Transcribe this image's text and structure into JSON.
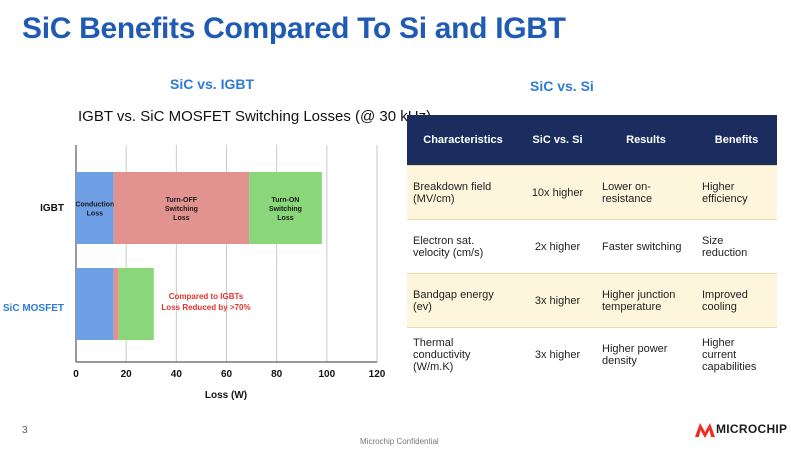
{
  "slide": {
    "title": "SiC Benefits Compared To Si and IGBT",
    "page_number": "3",
    "footer": "Microchip Confidential",
    "logo_text": "MICROCHIP",
    "brand_color": "#ee2e24"
  },
  "left": {
    "subtitle": "SiC vs. IGBT"
  },
  "right": {
    "subtitle": "SiC vs. Si"
  },
  "chart_data": {
    "type": "bar",
    "orientation": "horizontal",
    "stacked": true,
    "title": "IGBT vs. SiC MOSFET Switching Losses (@ 30 kHz)",
    "xlabel": "Loss (W)",
    "ylabel": "",
    "xlim": [
      0,
      120
    ],
    "xticks": [
      0,
      20,
      40,
      60,
      80,
      100,
      120
    ],
    "grid": "vertical",
    "categories": [
      "IGBT",
      "SiC MOSFET"
    ],
    "series": [
      {
        "name": "Conduction Loss",
        "color": "#6fa0e6",
        "values": [
          15,
          15
        ]
      },
      {
        "name": "Turn-OFF Switching Loss",
        "color": "#e29390",
        "values": [
          54,
          2
        ]
      },
      {
        "name": "Turn-ON Switching Loss",
        "color": "#8ad77a",
        "values": [
          29,
          14
        ]
      }
    ],
    "annotation": {
      "line1": "Compared to IGBTs",
      "line2": "Loss Reduced by >70%",
      "color": "#e0342c"
    }
  },
  "table": {
    "headers": [
      "Characteristics",
      "SiC vs. Si",
      "Results",
      "Benefits"
    ],
    "rows": [
      [
        "Breakdown field (MV/cm)",
        "10x higher",
        "Lower on-resistance",
        "Higher efficiency"
      ],
      [
        "Electron sat. velocity (cm/s)",
        "2x higher",
        "Faster switching",
        "Size reduction"
      ],
      [
        "Bandgap energy (ev)",
        "3x higher",
        "Higher junction temperature",
        "Improved cooling"
      ],
      [
        "Thermal conductivity (W/m.K)",
        "3x higher",
        "Higher power density",
        "Higher current capabilities"
      ]
    ]
  }
}
